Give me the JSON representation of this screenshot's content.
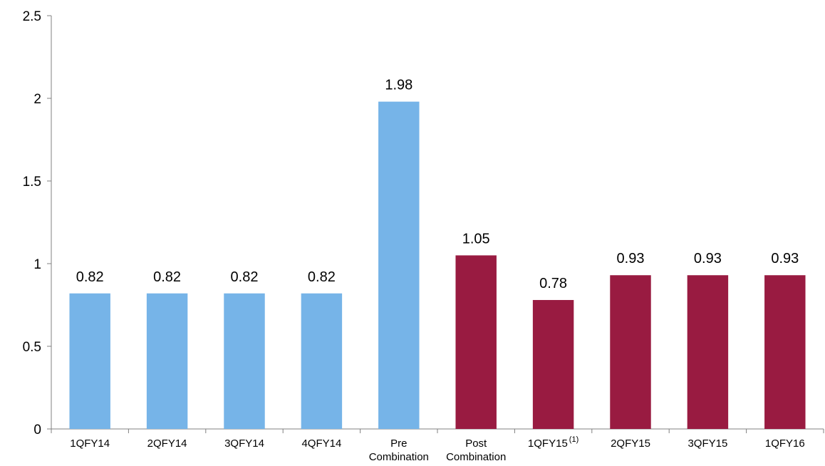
{
  "chart_data": {
    "type": "bar",
    "title": "",
    "xlabel": "",
    "ylabel": "",
    "ylim": [
      0,
      2.5
    ],
    "yticks": [
      "0",
      "0.5",
      "1",
      "1.5",
      "2",
      "2.5"
    ],
    "ytick_values": [
      0,
      0.5,
      1,
      1.5,
      2,
      2.5
    ],
    "grid": false,
    "legend": "none",
    "categories": [
      {
        "lines": [
          "1QFY14"
        ],
        "sup": ""
      },
      {
        "lines": [
          "2QFY14"
        ],
        "sup": ""
      },
      {
        "lines": [
          "3QFY14"
        ],
        "sup": ""
      },
      {
        "lines": [
          "4QFY14"
        ],
        "sup": ""
      },
      {
        "lines": [
          "Pre",
          "Combination"
        ],
        "sup": ""
      },
      {
        "lines": [
          "Post",
          "Combination"
        ],
        "sup": ""
      },
      {
        "lines": [
          "1QFY15"
        ],
        "sup": "(1)"
      },
      {
        "lines": [
          "2QFY15"
        ],
        "sup": ""
      },
      {
        "lines": [
          "3QFY15"
        ],
        "sup": ""
      },
      {
        "lines": [
          "1QFY16"
        ],
        "sup": ""
      }
    ],
    "values": [
      0.82,
      0.82,
      0.82,
      0.82,
      1.98,
      1.05,
      0.78,
      0.93,
      0.93,
      0.93
    ],
    "value_labels": [
      "0.82",
      "0.82",
      "0.82",
      "0.82",
      "1.98",
      "1.05",
      "0.78",
      "0.93",
      "0.93",
      "0.93"
    ],
    "bar_colors": [
      "#76b4e8",
      "#76b4e8",
      "#76b4e8",
      "#76b4e8",
      "#76b4e8",
      "#991b41",
      "#991b41",
      "#991b41",
      "#991b41",
      "#991b41"
    ]
  }
}
